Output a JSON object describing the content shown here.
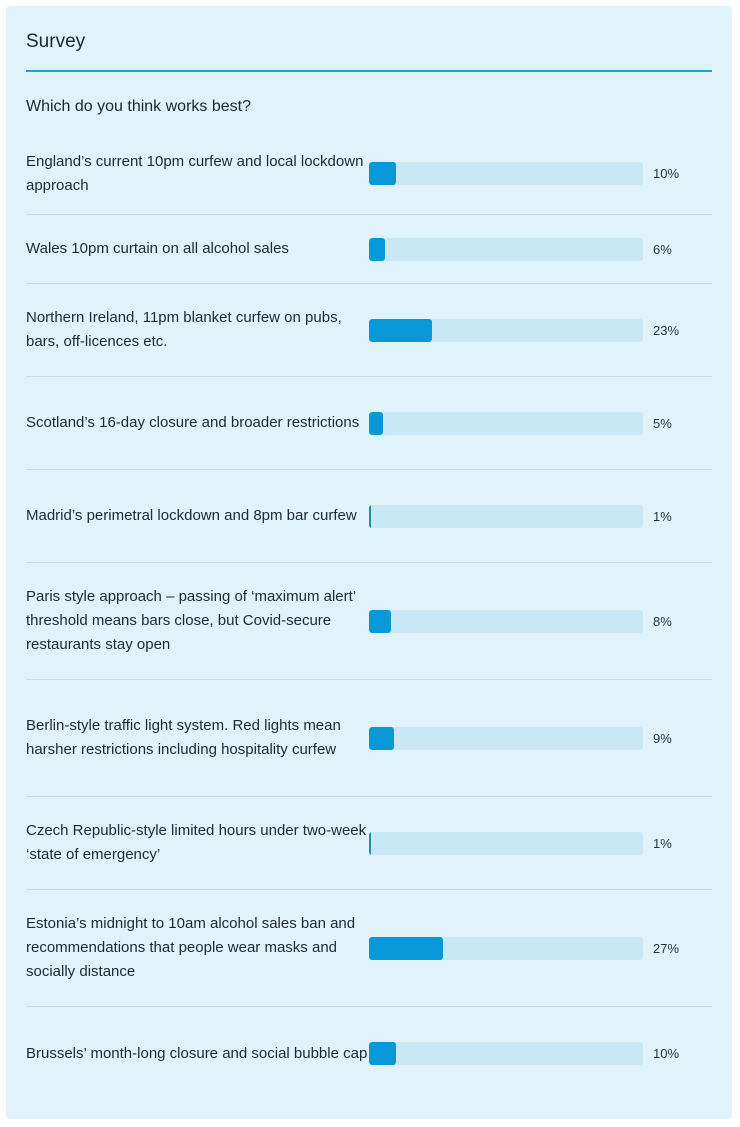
{
  "survey": {
    "title": "Survey",
    "question": "Which do you think works best?",
    "options": [
      {
        "label": "England’s current 10pm curfew and local lockdown approach",
        "percent": 10,
        "display": "10%"
      },
      {
        "label": "Wales 10pm curtain on all alcohol sales",
        "percent": 6,
        "display": "6%"
      },
      {
        "label": "Northern Ireland, 11pm blanket curfew on pubs, bars, off-licences etc.",
        "percent": 23,
        "display": "23%"
      },
      {
        "label": "Scotland’s 16-day closure and broader restrictions",
        "percent": 5,
        "display": "5%"
      },
      {
        "label": "Madrid’s perimetral lockdown and 8pm bar curfew",
        "percent": 1,
        "display": "1%"
      },
      {
        "label": "Paris style approach – passing of ‘maximum alert’ threshold means bars close, but Covid-secure restaurants stay open",
        "percent": 8,
        "display": "8%"
      },
      {
        "label": "Berlin-style traffic light system. Red lights mean harsher restrictions including hospitality curfew",
        "percent": 9,
        "display": "9%"
      },
      {
        "label": "Czech Republic-style limited hours under two-week ‘state of emergency’",
        "percent": 1,
        "display": "1%"
      },
      {
        "label": "Estonia’s midnight to 10am alcohol sales ban and recommendations that people wear masks and socially distance",
        "percent": 27,
        "display": "27%"
      },
      {
        "label": "Brussels’ month-long closure and social bubble cap",
        "percent": 10,
        "display": "10%"
      }
    ]
  },
  "colors": {
    "card_background": "#e0f2fa",
    "accent_line": "#1fa3c9",
    "bar_track": "#c8e8f6",
    "bar_fill": "#0898d8"
  }
}
